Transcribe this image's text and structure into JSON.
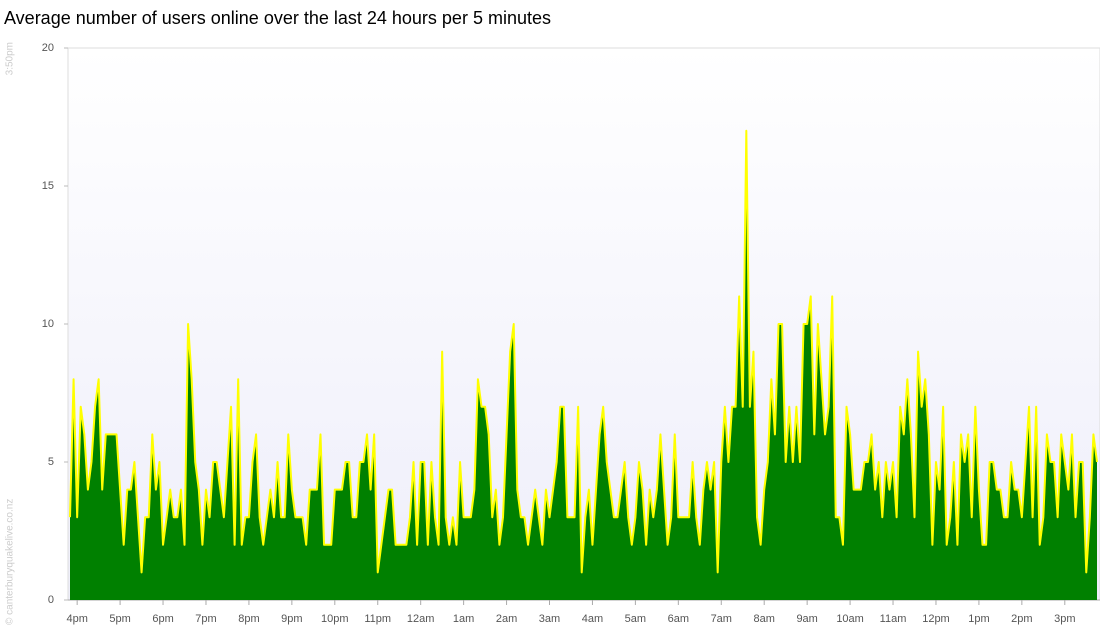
{
  "chart_data": {
    "type": "area",
    "title": "Average number of users online over the last 24 hours per 5 minutes",
    "start_label": "3:50pm",
    "credit": "© canterburyquakelive.co.nz",
    "categories": [
      null,
      null,
      "4pm",
      null,
      null,
      null,
      null,
      null,
      null,
      null,
      null,
      null,
      null,
      null,
      "5pm",
      null,
      null,
      null,
      null,
      null,
      null,
      null,
      null,
      null,
      null,
      null,
      "6pm",
      null,
      null,
      null,
      null,
      null,
      null,
      null,
      null,
      null,
      null,
      null,
      "7pm",
      null,
      null,
      null,
      null,
      null,
      null,
      null,
      null,
      null,
      null,
      null,
      "8pm",
      null,
      null,
      null,
      null,
      null,
      null,
      null,
      null,
      null,
      null,
      null,
      "9pm",
      null,
      null,
      null,
      null,
      null,
      null,
      null,
      null,
      null,
      null,
      null,
      "10pm",
      null,
      null,
      null,
      null,
      null,
      null,
      null,
      null,
      null,
      null,
      null,
      "11pm",
      null,
      null,
      null,
      null,
      null,
      null,
      null,
      null,
      null,
      null,
      null,
      "12am",
      null,
      null,
      null,
      null,
      null,
      null,
      null,
      null,
      null,
      null,
      null,
      "1am",
      null,
      null,
      null,
      null,
      null,
      null,
      null,
      null,
      null,
      null,
      null,
      "2am",
      null,
      null,
      null,
      null,
      null,
      null,
      null,
      null,
      null,
      null,
      null,
      "3am",
      null,
      null,
      null,
      null,
      null,
      null,
      null,
      null,
      null,
      null,
      null,
      "4am",
      null,
      null,
      null,
      null,
      null,
      null,
      null,
      null,
      null,
      null,
      null,
      "5am",
      null,
      null,
      null,
      null,
      null,
      null,
      null,
      null,
      null,
      null,
      null,
      "6am",
      null,
      null,
      null,
      null,
      null,
      null,
      null,
      null,
      null,
      null,
      null,
      "7am",
      null,
      null,
      null,
      null,
      null,
      null,
      null,
      null,
      null,
      null,
      null,
      "8am",
      null,
      null,
      null,
      null,
      null,
      null,
      null,
      null,
      null,
      null,
      null,
      "9am",
      null,
      null,
      null,
      null,
      null,
      null,
      null,
      null,
      null,
      null,
      null,
      "10am",
      null,
      null,
      null,
      null,
      null,
      null,
      null,
      null,
      null,
      null,
      null,
      "11am",
      null,
      null,
      null,
      null,
      null,
      null,
      null,
      null,
      null,
      null,
      null,
      "12pm",
      null,
      null,
      null,
      null,
      null,
      null,
      null,
      null,
      null,
      null,
      null,
      "1pm",
      null,
      null,
      null,
      null,
      null,
      null,
      null,
      null,
      null,
      null,
      null,
      "2pm",
      null,
      null,
      null,
      null,
      null,
      null,
      null,
      null,
      null,
      null,
      null,
      "3pm",
      null,
      null,
      null,
      null,
      null,
      null,
      null,
      null,
      null
    ],
    "values": [
      3,
      8,
      3,
      7,
      6,
      4,
      5,
      7,
      8,
      4,
      6,
      6,
      6,
      6,
      4,
      2,
      4,
      4,
      5,
      3,
      1,
      3,
      3,
      6,
      4,
      5,
      2,
      3,
      4,
      3,
      3,
      4,
      2,
      10,
      8,
      5,
      4,
      2,
      4,
      3,
      5,
      5,
      4,
      3,
      5,
      7,
      2,
      8,
      2,
      3,
      3,
      5,
      6,
      3,
      2,
      3,
      4,
      3,
      5,
      3,
      3,
      6,
      4,
      3,
      3,
      3,
      2,
      4,
      4,
      4,
      6,
      2,
      2,
      2,
      4,
      4,
      4,
      5,
      5,
      3,
      3,
      5,
      5,
      6,
      4,
      6,
      1,
      2,
      3,
      4,
      4,
      2,
      2,
      2,
      2,
      3,
      5,
      2,
      5,
      5,
      2,
      5,
      3,
      2,
      9,
      3,
      2,
      3,
      2,
      5,
      3,
      3,
      3,
      4,
      8,
      7,
      7,
      6,
      3,
      4,
      2,
      3,
      6,
      9,
      10,
      4,
      3,
      3,
      2,
      3,
      4,
      3,
      2,
      4,
      3,
      4,
      5,
      7,
      7,
      3,
      3,
      3,
      7,
      1,
      3,
      4,
      2,
      4,
      6,
      7,
      5,
      4,
      3,
      3,
      4,
      5,
      3,
      2,
      3,
      5,
      4,
      2,
      4,
      3,
      4,
      6,
      4,
      2,
      3,
      6,
      3,
      3,
      3,
      3,
      5,
      3,
      2,
      4,
      5,
      4,
      5,
      1,
      5,
      7,
      5,
      7,
      7,
      11,
      7,
      17,
      7,
      9,
      3,
      2,
      4,
      5,
      8,
      6,
      10,
      10,
      5,
      7,
      5,
      7,
      5,
      10,
      10,
      11,
      6,
      10,
      8,
      6,
      7,
      11,
      3,
      3,
      2,
      7,
      6,
      4,
      4,
      4,
      5,
      5,
      6,
      4,
      5,
      3,
      5,
      4,
      5,
      3,
      7,
      6,
      8,
      6,
      3,
      9,
      7,
      8,
      6,
      2,
      5,
      4,
      7,
      2,
      3,
      5,
      2,
      6,
      5,
      6,
      3,
      7,
      4,
      2,
      2,
      5,
      5,
      4,
      4,
      3,
      3,
      5,
      4,
      4,
      3,
      5,
      7,
      3,
      7,
      2,
      3,
      6,
      5,
      5,
      3,
      6,
      5,
      4,
      6,
      3,
      5,
      5,
      1,
      3,
      6,
      5
    ],
    "color": "#008000",
    "line_color": "#ffff00",
    "ylim": [
      0,
      20
    ],
    "yticks": [
      0,
      5,
      10,
      15,
      20
    ],
    "grid": false
  }
}
